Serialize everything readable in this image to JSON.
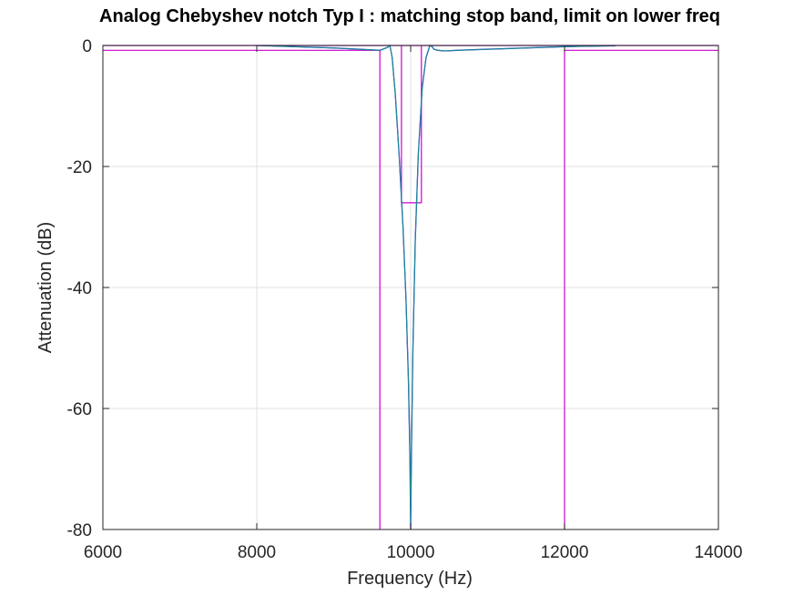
{
  "chart_data": {
    "type": "line",
    "title": "Analog Chebyshev notch Typ I : matching stop band, limit on lower freq",
    "xlabel": "Frequency (Hz)",
    "ylabel": "Attenuation (dB)",
    "xlim": [
      6000,
      14000
    ],
    "ylim": [
      -80,
      0
    ],
    "xticks": [
      6000,
      8000,
      10000,
      12000,
      14000
    ],
    "yticks": [
      0,
      -20,
      -40,
      -60,
      -80
    ],
    "xtick_labels": [
      "6000",
      "8000",
      "10000",
      "12000",
      "14000"
    ],
    "ytick_labels": [
      "0",
      "-20",
      "-40",
      "-60",
      "-80"
    ],
    "grid": true,
    "colors": {
      "response_blue": "#2a2ad6",
      "response_teal": "#1a8f8f",
      "spec": "#cc00cc",
      "grid": "#e0e0e0",
      "axis": "#262626"
    },
    "series": [
      {
        "x": [
          8000,
          9000,
          9600,
          9700,
          9730,
          9760,
          9800,
          9850,
          9900,
          9940,
          9970,
          9990,
          10000,
          10010,
          10030,
          10060,
          10100,
          10150,
          10200,
          10250,
          10280,
          10300,
          10350,
          10450,
          10600,
          10800,
          11500,
          12000,
          12660
        ],
        "y": [
          0,
          -0.4,
          -0.8,
          -0.3,
          0,
          -2,
          -8,
          -18,
          -30,
          -42,
          -55,
          -68,
          -80,
          -68,
          -50,
          -32,
          -18,
          -7,
          -2,
          0,
          -0.2,
          -0.6,
          -0.8,
          -0.9,
          -0.8,
          -0.7,
          -0.4,
          -0.2,
          -0.05
        ]
      }
    ],
    "spec_lines": [
      {
        "x": [
          6000,
          9600,
          9600
        ],
        "y": [
          -0.8,
          -0.8,
          -80
        ]
      },
      {
        "x": [
          12000,
          12000,
          14000
        ],
        "y": [
          -80,
          -0.8,
          -0.8
        ]
      },
      {
        "x": [
          9880,
          9880,
          10140,
          10140
        ],
        "y": [
          0,
          -26,
          -26,
          0
        ]
      },
      {
        "x": [
          6000,
          14000
        ],
        "y": [
          0,
          0
        ]
      }
    ]
  }
}
